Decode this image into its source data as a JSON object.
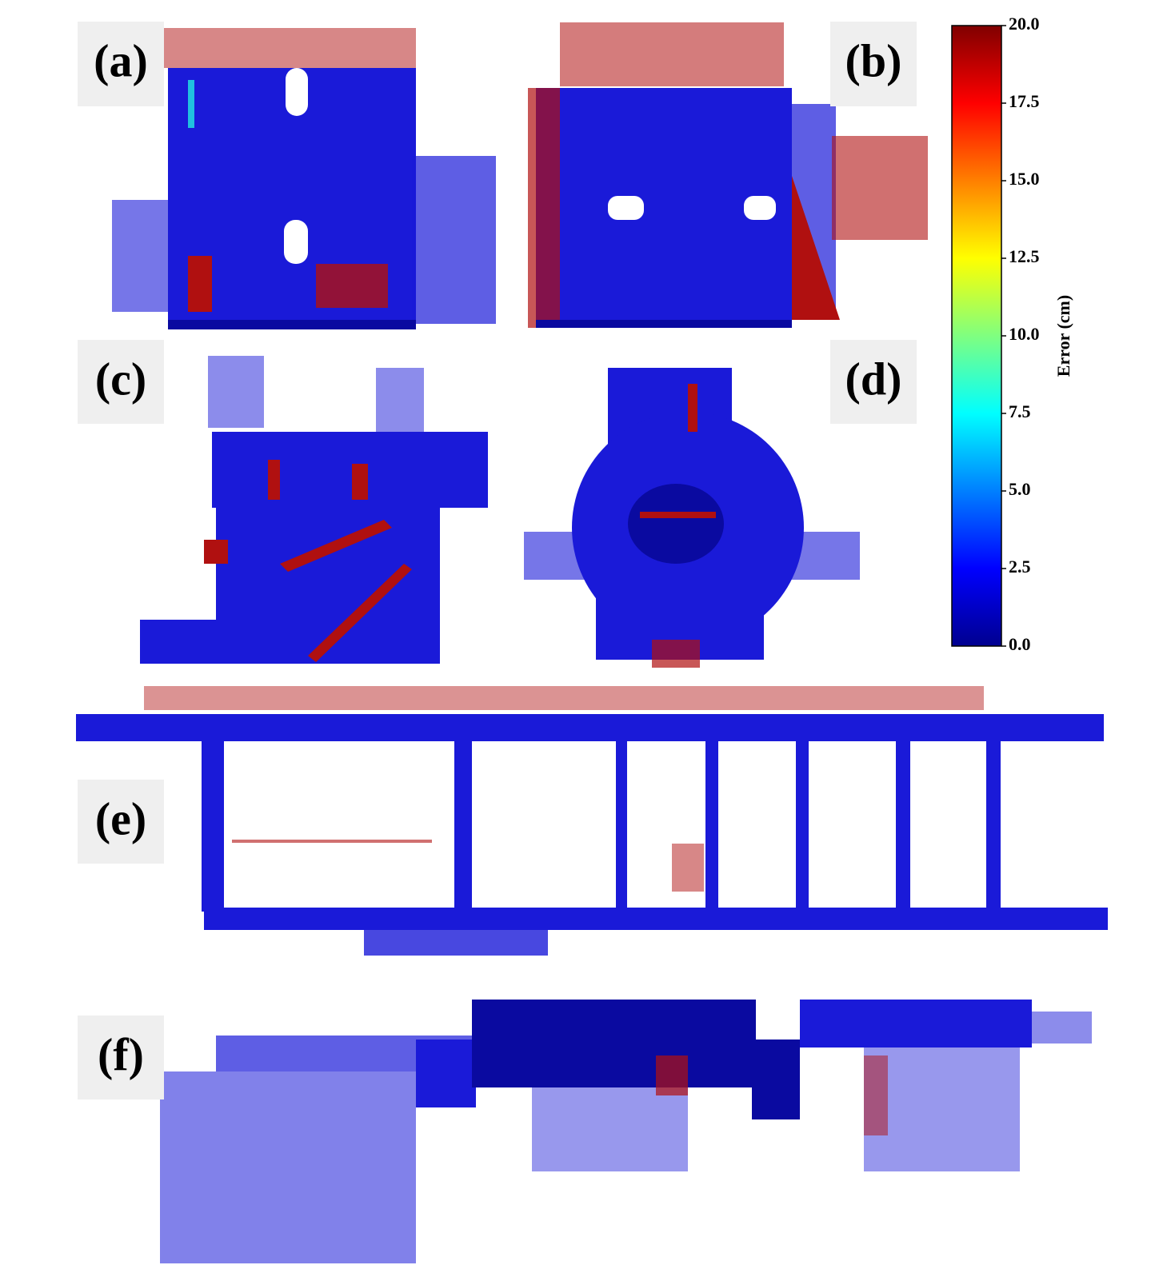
{
  "panels": [
    {
      "label": "(a)"
    },
    {
      "label": "(b)"
    },
    {
      "label": "(c)"
    },
    {
      "label": "(d)"
    },
    {
      "label": "(e)"
    },
    {
      "label": "(f)"
    }
  ],
  "colorbar": {
    "label": "Error (cm)",
    "lim": [
      0,
      20
    ],
    "ticks": [
      {
        "value": 0,
        "label": "0.0"
      },
      {
        "value": 2.5,
        "label": "2.5"
      },
      {
        "value": 5,
        "label": "5.0"
      },
      {
        "value": 7.5,
        "label": "7.5"
      },
      {
        "value": 10,
        "label": "10.0"
      },
      {
        "value": 12.5,
        "label": "12.5"
      },
      {
        "value": 15,
        "label": "15.0"
      },
      {
        "value": 17.5,
        "label": "17.5"
      },
      {
        "value": 20,
        "label": "20.0"
      }
    ]
  }
}
